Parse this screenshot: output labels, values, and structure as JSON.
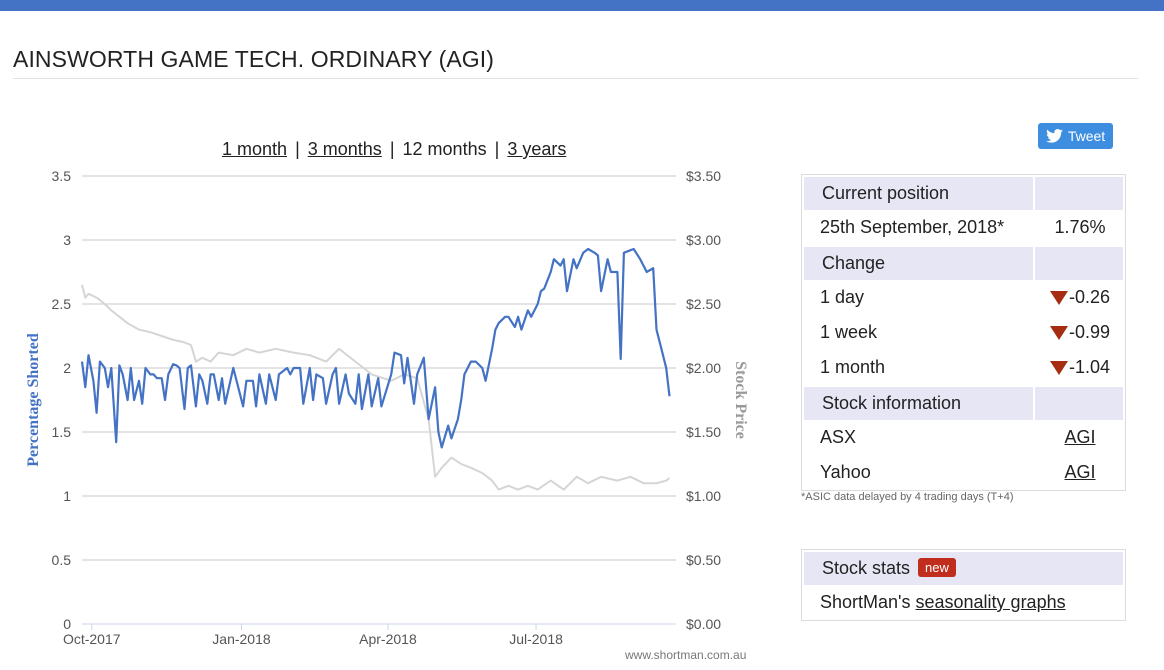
{
  "page": {
    "title": "AINSWORTH GAME TECH. ORDINARY (AGI)",
    "watermark": "www.shortman.com.au"
  },
  "range_links": {
    "one_month": "1 month",
    "three_months": "3 months",
    "twelve_months": "12 months",
    "three_years": "3 years",
    "separator": "|"
  },
  "tweet": {
    "label": "Tweet",
    "icon": "twitter-bird-icon"
  },
  "stats": {
    "current_position": {
      "heading": "Current position",
      "date": "25th September, 2018*",
      "value": "1.76%"
    },
    "change": {
      "heading": "Change",
      "rows": [
        {
          "label": "1 day",
          "value": "-0.26",
          "direction": "down"
        },
        {
          "label": "1 week",
          "value": "-0.99",
          "direction": "down"
        },
        {
          "label": "1 month",
          "value": "-1.04",
          "direction": "down"
        }
      ]
    },
    "stock_information": {
      "heading": "Stock information",
      "rows": [
        {
          "label": "ASX",
          "link": "AGI"
        },
        {
          "label": "Yahoo",
          "link": "AGI"
        }
      ]
    },
    "footnote": "*ASIC data delayed by 4 trading days (T+4)"
  },
  "stock_stats": {
    "heading": "Stock stats",
    "badge": "new",
    "text_prefix": "ShortMan's",
    "link": "seasonality graphs"
  },
  "colors": {
    "accent": "#4472c4",
    "short_series": "#4472c4",
    "price_series": "#d5d5d5",
    "down_arrow": "#a52d12",
    "badge": "#c12d1c",
    "header_bg": "#e6e6f5",
    "tweet_bg": "#3d8ee0"
  },
  "chart_data": {
    "type": "line",
    "xlabel": "",
    "ylabel": "Percentage Shorted",
    "y2label": "Stock Price",
    "ylim": [
      0,
      3.5
    ],
    "y2lim": [
      0,
      3.5
    ],
    "yticks": [
      "0",
      "0.5",
      "1",
      "1.5",
      "2",
      "2.5",
      "3",
      "3.5"
    ],
    "y2ticks": [
      "$0.00",
      "$0.50",
      "$1.00",
      "$1.50",
      "$2.00",
      "$2.50",
      "$3.00",
      "$3.50"
    ],
    "xticks": [
      {
        "label": "Oct-2017",
        "date": "2017-10-01"
      },
      {
        "label": "Jan-2018",
        "date": "2018-01-01"
      },
      {
        "label": "Apr-2018",
        "date": "2018-04-01"
      },
      {
        "label": "Jul-2018",
        "date": "2018-07-01"
      }
    ],
    "xlim": [
      "2017-09-25",
      "2018-09-25"
    ],
    "grid": true,
    "series": [
      {
        "name": "Percentage Shorted",
        "axis": "left",
        "points": [
          [
            "2017-09-25",
            2.05
          ],
          [
            "2017-09-27",
            1.85
          ],
          [
            "2017-09-29",
            2.1
          ],
          [
            "2017-10-02",
            1.9
          ],
          [
            "2017-10-04",
            1.65
          ],
          [
            "2017-10-06",
            2.05
          ],
          [
            "2017-10-09",
            2.0
          ],
          [
            "2017-10-11",
            1.85
          ],
          [
            "2017-10-13",
            2.0
          ],
          [
            "2017-10-16",
            1.42
          ],
          [
            "2017-10-18",
            2.02
          ],
          [
            "2017-10-20",
            1.95
          ],
          [
            "2017-10-23",
            1.75
          ],
          [
            "2017-10-25",
            2.0
          ],
          [
            "2017-10-27",
            1.75
          ],
          [
            "2017-10-30",
            1.9
          ],
          [
            "2017-11-01",
            1.72
          ],
          [
            "2017-11-03",
            2.0
          ],
          [
            "2017-11-06",
            1.95
          ],
          [
            "2017-11-08",
            1.95
          ],
          [
            "2017-11-10",
            1.92
          ],
          [
            "2017-11-13",
            1.92
          ],
          [
            "2017-11-15",
            1.75
          ],
          [
            "2017-11-17",
            1.95
          ],
          [
            "2017-11-20",
            2.03
          ],
          [
            "2017-11-22",
            2.02
          ],
          [
            "2017-11-24",
            2.0
          ],
          [
            "2017-11-27",
            1.68
          ],
          [
            "2017-11-29",
            2.0
          ],
          [
            "2017-12-01",
            2.02
          ],
          [
            "2017-12-04",
            1.7
          ],
          [
            "2017-12-06",
            1.95
          ],
          [
            "2017-12-08",
            1.9
          ],
          [
            "2017-12-11",
            1.72
          ],
          [
            "2017-12-13",
            1.95
          ],
          [
            "2017-12-15",
            1.95
          ],
          [
            "2017-12-18",
            1.75
          ],
          [
            "2017-12-20",
            1.92
          ],
          [
            "2017-12-22",
            1.72
          ],
          [
            "2017-12-27",
            2.0
          ],
          [
            "2018-01-02",
            1.7
          ],
          [
            "2018-01-04",
            1.9
          ],
          [
            "2018-01-08",
            1.9
          ],
          [
            "2018-01-10",
            1.7
          ],
          [
            "2018-01-12",
            1.95
          ],
          [
            "2018-01-16",
            1.72
          ],
          [
            "2018-01-18",
            1.95
          ],
          [
            "2018-01-22",
            1.75
          ],
          [
            "2018-01-24",
            1.95
          ],
          [
            "2018-01-29",
            2.0
          ],
          [
            "2018-01-31",
            1.95
          ],
          [
            "2018-02-02",
            2.0
          ],
          [
            "2018-02-06",
            2.0
          ],
          [
            "2018-02-08",
            1.72
          ],
          [
            "2018-02-12",
            2.0
          ],
          [
            "2018-02-14",
            1.75
          ],
          [
            "2018-02-16",
            1.95
          ],
          [
            "2018-02-20",
            1.92
          ],
          [
            "2018-02-22",
            1.72
          ],
          [
            "2018-02-26",
            1.95
          ],
          [
            "2018-02-28",
            2.0
          ],
          [
            "2018-03-02",
            1.72
          ],
          [
            "2018-03-06",
            1.95
          ],
          [
            "2018-03-08",
            1.8
          ],
          [
            "2018-03-12",
            1.72
          ],
          [
            "2018-03-14",
            1.95
          ],
          [
            "2018-03-16",
            1.68
          ],
          [
            "2018-03-20",
            1.95
          ],
          [
            "2018-03-22",
            1.7
          ],
          [
            "2018-03-26",
            1.92
          ],
          [
            "2018-03-28",
            1.7
          ],
          [
            "2018-04-03",
            1.95
          ],
          [
            "2018-04-05",
            2.12
          ],
          [
            "2018-04-09",
            2.1
          ],
          [
            "2018-04-11",
            1.88
          ],
          [
            "2018-04-13",
            2.08
          ],
          [
            "2018-04-17",
            1.72
          ],
          [
            "2018-04-19",
            1.95
          ],
          [
            "2018-04-23",
            2.08
          ],
          [
            "2018-04-26",
            1.6
          ],
          [
            "2018-04-30",
            1.85
          ],
          [
            "2018-05-02",
            1.5
          ],
          [
            "2018-05-04",
            1.38
          ],
          [
            "2018-05-08",
            1.55
          ],
          [
            "2018-05-10",
            1.45
          ],
          [
            "2018-05-14",
            1.6
          ],
          [
            "2018-05-16",
            1.75
          ],
          [
            "2018-05-18",
            1.95
          ],
          [
            "2018-05-22",
            2.05
          ],
          [
            "2018-05-25",
            2.05
          ],
          [
            "2018-05-29",
            2.0
          ],
          [
            "2018-05-31",
            1.9
          ],
          [
            "2018-06-04",
            2.15
          ],
          [
            "2018-06-06",
            2.3
          ],
          [
            "2018-06-08",
            2.35
          ],
          [
            "2018-06-12",
            2.4
          ],
          [
            "2018-06-14",
            2.4
          ],
          [
            "2018-06-18",
            2.32
          ],
          [
            "2018-06-20",
            2.4
          ],
          [
            "2018-06-22",
            2.3
          ],
          [
            "2018-06-26",
            2.45
          ],
          [
            "2018-06-28",
            2.4
          ],
          [
            "2018-07-02",
            2.5
          ],
          [
            "2018-07-04",
            2.6
          ],
          [
            "2018-07-06",
            2.62
          ],
          [
            "2018-07-10",
            2.75
          ],
          [
            "2018-07-12",
            2.85
          ],
          [
            "2018-07-16",
            2.8
          ],
          [
            "2018-07-18",
            2.85
          ],
          [
            "2018-07-20",
            2.6
          ],
          [
            "2018-07-24",
            2.85
          ],
          [
            "2018-07-26",
            2.78
          ],
          [
            "2018-07-30",
            2.9
          ],
          [
            "2018-08-02",
            2.93
          ],
          [
            "2018-08-06",
            2.9
          ],
          [
            "2018-08-08",
            2.88
          ],
          [
            "2018-08-10",
            2.6
          ],
          [
            "2018-08-14",
            2.85
          ],
          [
            "2018-08-16",
            2.75
          ],
          [
            "2018-08-20",
            2.75
          ],
          [
            "2018-08-22",
            2.07
          ],
          [
            "2018-08-24",
            2.9
          ],
          [
            "2018-08-28",
            2.92
          ],
          [
            "2018-08-30",
            2.93
          ],
          [
            "2018-09-03",
            2.85
          ],
          [
            "2018-09-05",
            2.8
          ],
          [
            "2018-09-07",
            2.75
          ],
          [
            "2018-09-11",
            2.78
          ],
          [
            "2018-09-13",
            2.3
          ],
          [
            "2018-09-17",
            2.1
          ],
          [
            "2018-09-19",
            2.0
          ],
          [
            "2018-09-21",
            1.78
          ]
        ]
      },
      {
        "name": "Stock Price",
        "axis": "right",
        "points": [
          [
            "2017-09-25",
            2.65
          ],
          [
            "2017-09-27",
            2.55
          ],
          [
            "2017-09-29",
            2.58
          ],
          [
            "2017-10-04",
            2.55
          ],
          [
            "2017-10-09",
            2.5
          ],
          [
            "2017-10-13",
            2.45
          ],
          [
            "2017-10-18",
            2.4
          ],
          [
            "2017-10-23",
            2.35
          ],
          [
            "2017-10-30",
            2.3
          ],
          [
            "2017-11-06",
            2.28
          ],
          [
            "2017-11-13",
            2.25
          ],
          [
            "2017-11-20",
            2.22
          ],
          [
            "2017-11-27",
            2.2
          ],
          [
            "2017-12-01",
            2.18
          ],
          [
            "2017-12-04",
            2.05
          ],
          [
            "2017-12-08",
            2.08
          ],
          [
            "2017-12-13",
            2.05
          ],
          [
            "2017-12-18",
            2.12
          ],
          [
            "2017-12-27",
            2.1
          ],
          [
            "2018-01-04",
            2.15
          ],
          [
            "2018-01-12",
            2.12
          ],
          [
            "2018-01-22",
            2.15
          ],
          [
            "2018-02-02",
            2.12
          ],
          [
            "2018-02-12",
            2.1
          ],
          [
            "2018-02-22",
            2.05
          ],
          [
            "2018-03-02",
            2.15
          ],
          [
            "2018-03-12",
            2.05
          ],
          [
            "2018-03-22",
            1.95
          ],
          [
            "2018-04-03",
            1.9
          ],
          [
            "2018-04-11",
            1.95
          ],
          [
            "2018-04-19",
            1.92
          ],
          [
            "2018-04-26",
            1.6
          ],
          [
            "2018-04-30",
            1.15
          ],
          [
            "2018-05-04",
            1.22
          ],
          [
            "2018-05-10",
            1.3
          ],
          [
            "2018-05-16",
            1.25
          ],
          [
            "2018-05-22",
            1.22
          ],
          [
            "2018-05-29",
            1.18
          ],
          [
            "2018-06-04",
            1.12
          ],
          [
            "2018-06-08",
            1.05
          ],
          [
            "2018-06-14",
            1.08
          ],
          [
            "2018-06-20",
            1.05
          ],
          [
            "2018-06-26",
            1.08
          ],
          [
            "2018-07-02",
            1.05
          ],
          [
            "2018-07-10",
            1.12
          ],
          [
            "2018-07-18",
            1.05
          ],
          [
            "2018-07-26",
            1.15
          ],
          [
            "2018-08-02",
            1.1
          ],
          [
            "2018-08-10",
            1.15
          ],
          [
            "2018-08-20",
            1.12
          ],
          [
            "2018-08-28",
            1.15
          ],
          [
            "2018-09-05",
            1.1
          ],
          [
            "2018-09-13",
            1.1
          ],
          [
            "2018-09-19",
            1.12
          ],
          [
            "2018-09-21",
            1.14
          ]
        ]
      }
    ]
  }
}
